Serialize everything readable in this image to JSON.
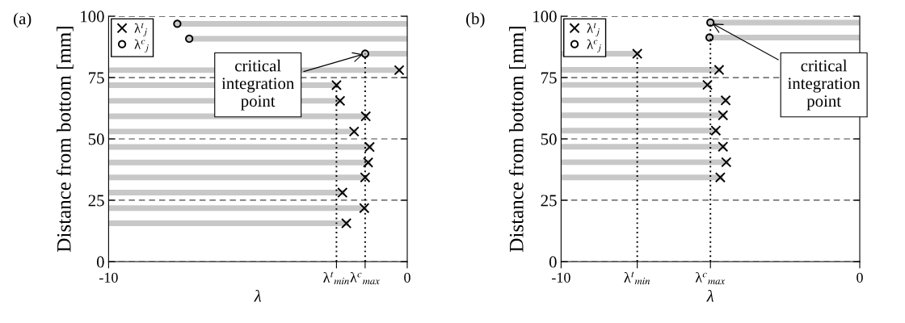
{
  "chart_data": [
    {
      "type": "scatter",
      "title": "(a)",
      "xlabel": "λ",
      "ylabel": "Distance from bottom [mm]",
      "xlim": [
        -10,
        0
      ],
      "ylim": [
        0,
        100
      ],
      "xticks": [
        -10,
        {
          "value": -2.37,
          "label": "λ$^{t}$$_{min}$"
        },
        {
          "value": -1.41,
          "label": "λ$^{c}$$_{max}$"
        },
        0
      ],
      "yticks": [
        0,
        25,
        50,
        75,
        100
      ],
      "grid": "y",
      "legend": "top left",
      "annotations": [
        {
          "text": "critical\nintegration\npoint",
          "x": -1.41,
          "y": 84.7
        }
      ],
      "series": [
        {
          "type": "line",
          "color": "#c8c8c8",
          "x": [
            -7.7,
            0
          ],
          "values": [
            96.9,
            96.9
          ]
        },
        {
          "type": "line",
          "color": "#c8c8c8",
          "x": [
            -7.3,
            0
          ],
          "values": [
            90.8,
            90.8
          ]
        },
        {
          "type": "line",
          "color": "#c8c8c8",
          "x": [
            -1.41,
            0
          ],
          "values": [
            84.7,
            84.7
          ]
        },
        {
          "type": "line",
          "color": "#c8c8c8",
          "x": [
            -10,
            -0.27
          ],
          "values": [
            78.0,
            78.0
          ]
        },
        {
          "type": "line",
          "color": "#c8c8c8",
          "x": [
            -10,
            -2.37
          ],
          "values": [
            71.9,
            71.9
          ]
        },
        {
          "type": "line",
          "color": "#c8c8c8",
          "x": [
            -10,
            -2.25
          ],
          "values": [
            65.5,
            65.5
          ]
        },
        {
          "type": "line",
          "color": "#c8c8c8",
          "x": [
            -10,
            -1.39
          ],
          "values": [
            59.2,
            59.2
          ]
        },
        {
          "type": "line",
          "color": "#c8c8c8",
          "x": [
            -10,
            -1.78
          ],
          "values": [
            53.0,
            53.0
          ]
        },
        {
          "type": "line",
          "color": "#c8c8c8",
          "x": [
            -10,
            -1.26
          ],
          "values": [
            46.7,
            46.7
          ]
        },
        {
          "type": "line",
          "color": "#c8c8c8",
          "x": [
            -10,
            -1.31
          ],
          "values": [
            40.4,
            40.4
          ]
        },
        {
          "type": "line",
          "color": "#c8c8c8",
          "x": [
            -10,
            -1.41
          ],
          "values": [
            34.3,
            34.3
          ]
        },
        {
          "type": "line",
          "color": "#c8c8c8",
          "x": [
            -10,
            -2.17
          ],
          "values": [
            28.1,
            28.1
          ]
        },
        {
          "type": "line",
          "color": "#c8c8c8",
          "x": [
            -10,
            -1.44
          ],
          "values": [
            21.8,
            21.8
          ]
        },
        {
          "type": "line",
          "color": "#c8c8c8",
          "x": [
            -10,
            -2.04
          ],
          "values": [
            15.6,
            15.6
          ]
        },
        {
          "name": "λ$^{t}$$_{j}$",
          "marker": "cross",
          "color": "#000000",
          "x": [
            -0.27,
            -2.37,
            -2.25,
            -1.39,
            -1.78,
            -1.26,
            -1.31,
            -1.41,
            -2.17,
            -1.44,
            -2.04
          ],
          "values": [
            78.0,
            71.9,
            65.5,
            59.2,
            53.0,
            46.7,
            40.4,
            34.3,
            28.1,
            21.8,
            15.6
          ],
          "errors": [
            null,
            [
              71.9,
              0
            ],
            null,
            null,
            null,
            null,
            null,
            null,
            null,
            null,
            null
          ]
        },
        {
          "name": "λ$^{c}$$_{j}$",
          "marker": "circle",
          "color": "#000000",
          "x": [
            -7.7,
            -7.3,
            -1.41
          ],
          "values": [
            96.9,
            90.8,
            84.7
          ],
          "errors": [
            null,
            null,
            [
              84.7,
              0
            ]
          ]
        }
      ]
    },
    {
      "type": "scatter",
      "title": "(b)",
      "xlabel": "λ",
      "ylabel": "Distance from bottom [mm]",
      "xlim": [
        -10,
        0
      ],
      "ylim": [
        0,
        100
      ],
      "xticks": [
        -10,
        {
          "value": -7.45,
          "label": "λ$^{t}$$_{min}$"
        },
        {
          "value": -5.0,
          "label": "λ$^{c}$$_{max}$"
        },
        0
      ],
      "yticks": [
        0,
        25,
        50,
        75,
        100
      ],
      "grid": "y",
      "legend": "top left",
      "annotations": [
        {
          "text": "critical\nintegration\npoint",
          "x": -5.0,
          "y": 97.4
        }
      ],
      "series": [
        {
          "type": "line",
          "color": "#c8c8c8",
          "x": [
            -5.0,
            0
          ],
          "values": [
            97.4,
            97.4
          ]
        },
        {
          "type": "line",
          "color": "#c8c8c8",
          "x": [
            -5.03,
            0
          ],
          "values": [
            91.3,
            91.3
          ]
        },
        {
          "type": "line",
          "color": "#c8c8c8",
          "x": [
            -10,
            -7.45
          ],
          "values": [
            84.7,
            84.7
          ]
        },
        {
          "type": "line",
          "color": "#c8c8c8",
          "x": [
            -10,
            -4.71
          ],
          "values": [
            78.1,
            78.1
          ]
        },
        {
          "type": "line",
          "color": "#c8c8c8",
          "x": [
            -10,
            -5.1
          ],
          "values": [
            72.0,
            72.0
          ]
        },
        {
          "type": "line",
          "color": "#c8c8c8",
          "x": [
            -10,
            -4.49
          ],
          "values": [
            65.7,
            65.7
          ]
        },
        {
          "type": "line",
          "color": "#c8c8c8",
          "x": [
            -10,
            -4.58
          ],
          "values": [
            59.6,
            59.6
          ]
        },
        {
          "type": "line",
          "color": "#c8c8c8",
          "x": [
            -10,
            -4.82
          ],
          "values": [
            53.4,
            53.4
          ]
        },
        {
          "type": "line",
          "color": "#c8c8c8",
          "x": [
            -10,
            -4.58
          ],
          "values": [
            46.8,
            46.8
          ]
        },
        {
          "type": "line",
          "color": "#c8c8c8",
          "x": [
            -10,
            -4.47
          ],
          "values": [
            40.5,
            40.5
          ]
        },
        {
          "type": "line",
          "color": "#c8c8c8",
          "x": [
            -10,
            -4.67
          ],
          "values": [
            34.3,
            34.3
          ]
        },
        {
          "name": "λ$^{t}$$_{j}$",
          "marker": "cross",
          "color": "#000000",
          "x": [
            -7.45,
            -4.71,
            -5.1,
            -4.49,
            -4.58,
            -4.82,
            -4.58,
            -4.47,
            -4.67
          ],
          "values": [
            84.7,
            78.1,
            72.0,
            65.7,
            59.6,
            53.4,
            46.8,
            40.5,
            34.3
          ],
          "errors": [
            [
              84.7,
              0
            ],
            null,
            null,
            null,
            null,
            null,
            null,
            null,
            null
          ]
        },
        {
          "name": "λ$^{c}$$_{j}$",
          "marker": "circle",
          "color": "#000000",
          "x": [
            -5.0,
            -5.03
          ],
          "values": [
            97.4,
            91.3
          ],
          "errors": [
            [
              97.4,
              0
            ],
            null
          ]
        }
      ]
    }
  ]
}
